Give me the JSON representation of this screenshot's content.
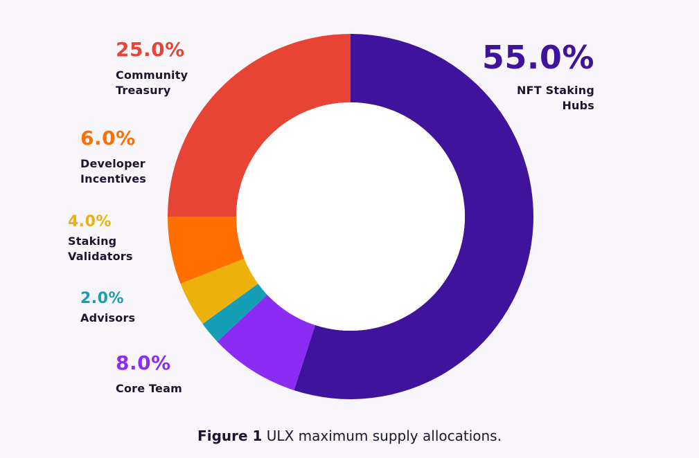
{
  "chart_data": {
    "type": "pie",
    "donut": true,
    "categories": [
      "NFT Staking Hubs",
      "Core Team",
      "Advisors",
      "Staking Validators",
      "Developer Incentives",
      "Community Treasury"
    ],
    "values": [
      55.0,
      8.0,
      2.0,
      4.0,
      6.0,
      25.0
    ],
    "colors": [
      "#40139c",
      "#8b2cf5",
      "#149fb6",
      "#ecb20b",
      "#ff6f00",
      "#e84436"
    ],
    "labels": [
      {
        "pct": "55.0%",
        "name": "NFT Staking\nHubs"
      },
      {
        "pct": "8.0%",
        "name": "Core Team"
      },
      {
        "pct": "2.0%",
        "name": "Advisors"
      },
      {
        "pct": "4.0%",
        "name": "Staking\nValidators"
      },
      {
        "pct": "6.0%",
        "name": "Developer\nIncentives"
      },
      {
        "pct": "25.0%",
        "name": "Community\nTreasury"
      }
    ],
    "caption_bold": "Figure 1",
    "caption_text": " ULX maximum supply allocations."
  }
}
